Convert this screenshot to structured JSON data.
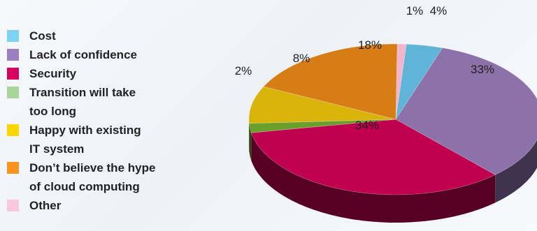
{
  "chart_data": {
    "type": "pie",
    "title": "",
    "legend_position": "left",
    "categories": [
      "Cost",
      "Lack of confidence",
      "Security",
      "Transition will take too long",
      "Happy with existing IT system",
      "Don't believe the hype of cloud computing",
      "Other"
    ],
    "legend_lines": [
      [
        "Cost"
      ],
      [
        "Lack of confidence"
      ],
      [
        "Security"
      ],
      [
        "Transition will take",
        "too long"
      ],
      [
        "Happy with existing",
        "IT system"
      ],
      [
        "Don’t believe the hype",
        "of cloud computing"
      ],
      [
        "Other"
      ]
    ],
    "values": [
      4,
      33,
      34,
      2,
      8,
      18,
      1
    ],
    "value_labels": [
      "4%",
      "33%",
      "34%",
      "2%",
      "8%",
      "18%",
      "1%"
    ],
    "colors": [
      "#5fb4d8",
      "#8d72aa",
      "#c0004f",
      "#6a9f2b",
      "#d9b40a",
      "#d77d16",
      "#f2b5cc"
    ],
    "legend_colors": [
      "#7dd3f2",
      "#9b7fbf",
      "#d6005e",
      "#a8d59a",
      "#ffd500",
      "#f7931e",
      "#f9c8dc"
    ]
  }
}
